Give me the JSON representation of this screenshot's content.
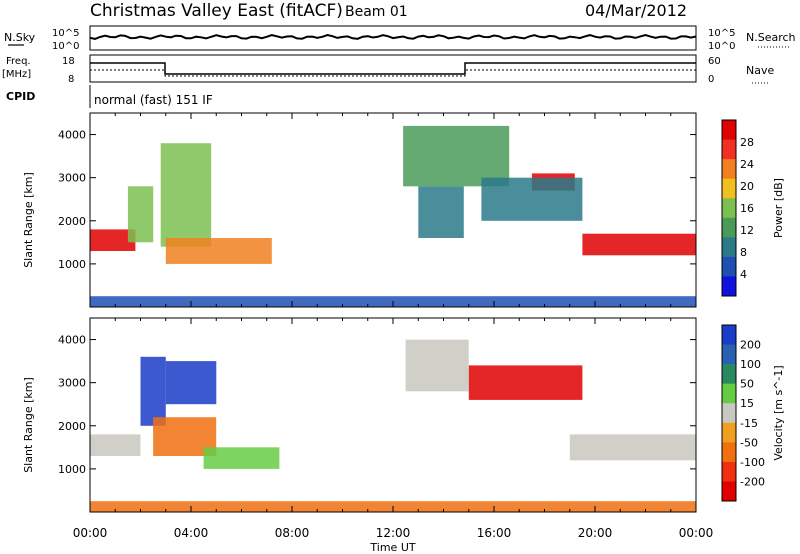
{
  "header": {
    "station": "Christmas Valley East (fitACF)",
    "beam": "Beam 01",
    "date": "04/Mar/2012"
  },
  "panels": {
    "nsky_label": "N.Sky",
    "nsky_ticks": [
      "10^5",
      "10^0"
    ],
    "nsearch_label": "N.Search",
    "nsearch_ticks": [
      "10^5",
      "10^0"
    ],
    "freq_label_1": "Freq.",
    "freq_label_2": "[MHz]",
    "freq_ticks": [
      "18",
      "8"
    ],
    "nave_label": "Nave",
    "nave_ticks": [
      "60",
      "0"
    ],
    "cpid_label": "CPID",
    "cpid_text": "normal (fast) 151 IF"
  },
  "colors": {
    "power_scale": [
      "#1010e0",
      "#1e50b4",
      "#2a7a8a",
      "#4a9a5a",
      "#7cc050",
      "#f0c020",
      "#f08020",
      "#f03020",
      "#e00000"
    ],
    "velocity_scale": [
      "#1a3cc8",
      "#2a60b0",
      "#2a8860",
      "#66cc44",
      "#c8c8c0",
      "#f0a020",
      "#f07010",
      "#f03010",
      "#e00000"
    ]
  },
  "chart_data": [
    {
      "type": "heatmap",
      "title": "",
      "xlabel": "Time UT",
      "ylabel": "Slant Range [km]",
      "xlim": [
        0,
        24
      ],
      "ylim": [
        0,
        4500
      ],
      "x_ticks": [
        "00:00",
        "04:00",
        "08:00",
        "12:00",
        "16:00",
        "20:00",
        "00:00"
      ],
      "y_ticks": [
        1000,
        2000,
        3000,
        4000
      ],
      "colorbar": {
        "label": "Power [dB]",
        "ticks": [
          "4",
          "8",
          "12",
          "16",
          "20",
          "24",
          "28"
        ]
      },
      "regions": [
        {
          "t0": 0.0,
          "t1": 1.8,
          "r0": 1300,
          "r1": 1800,
          "value_db": 26
        },
        {
          "t0": 1.5,
          "t1": 2.5,
          "r0": 1500,
          "r1": 2800,
          "value_db": 14
        },
        {
          "t0": 2.8,
          "t1": 4.8,
          "r0": 1400,
          "r1": 3800,
          "value_db": 16
        },
        {
          "t0": 3.0,
          "t1": 7.2,
          "r0": 1000,
          "r1": 1600,
          "value_db": 20
        },
        {
          "t0": 12.4,
          "t1": 16.6,
          "r0": 2800,
          "r1": 4200,
          "value_db": 12
        },
        {
          "t0": 13.0,
          "t1": 14.8,
          "r0": 1600,
          "r1": 2800,
          "value_db": 8
        },
        {
          "t0": 17.5,
          "t1": 19.2,
          "r0": 2700,
          "r1": 3100,
          "value_db": 26
        },
        {
          "t0": 15.5,
          "t1": 19.5,
          "r0": 2000,
          "r1": 3000,
          "value_db": 8
        },
        {
          "t0": 19.5,
          "t1": 24.0,
          "r0": 1200,
          "r1": 1700,
          "value_db": 26
        },
        {
          "t0": 0.0,
          "t1": 24.0,
          "r0": 0,
          "r1": 250,
          "value_db": 6
        }
      ]
    },
    {
      "type": "heatmap",
      "title": "",
      "xlabel": "Time UT",
      "ylabel": "Slant Range [km]",
      "xlim": [
        0,
        24
      ],
      "ylim": [
        0,
        4500
      ],
      "x_ticks": [
        "00:00",
        "04:00",
        "08:00",
        "12:00",
        "16:00",
        "20:00",
        "00:00"
      ],
      "y_ticks": [
        1000,
        2000,
        3000,
        4000
      ],
      "colorbar": {
        "label": "Velocity [m s^-1]",
        "ticks": [
          "200",
          "100",
          "50",
          "15",
          "-15",
          "-50",
          "-100",
          "-200"
        ]
      },
      "regions": [
        {
          "t0": 0.0,
          "t1": 2.0,
          "r0": 1300,
          "r1": 1800,
          "value_ms": 0
        },
        {
          "t0": 2.0,
          "t1": 3.0,
          "r0": 2000,
          "r1": 3600,
          "value_ms": 180
        },
        {
          "t0": 3.0,
          "t1": 5.0,
          "r0": 2500,
          "r1": 3500,
          "value_ms": 190
        },
        {
          "t0": 2.5,
          "t1": 5.0,
          "r0": 1300,
          "r1": 2200,
          "value_ms": -60
        },
        {
          "t0": 4.5,
          "t1": 7.5,
          "r0": 1000,
          "r1": 1500,
          "value_ms": 30
        },
        {
          "t0": 12.5,
          "t1": 15.0,
          "r0": 2800,
          "r1": 4000,
          "value_ms": 0
        },
        {
          "t0": 15.0,
          "t1": 19.5,
          "r0": 2600,
          "r1": 3400,
          "value_ms": -200
        },
        {
          "t0": 19.0,
          "t1": 24.0,
          "r0": 1200,
          "r1": 1800,
          "value_ms": 0
        },
        {
          "t0": 0.0,
          "t1": 24.0,
          "r0": 0,
          "r1": 250,
          "value_ms": -40
        }
      ]
    }
  ]
}
